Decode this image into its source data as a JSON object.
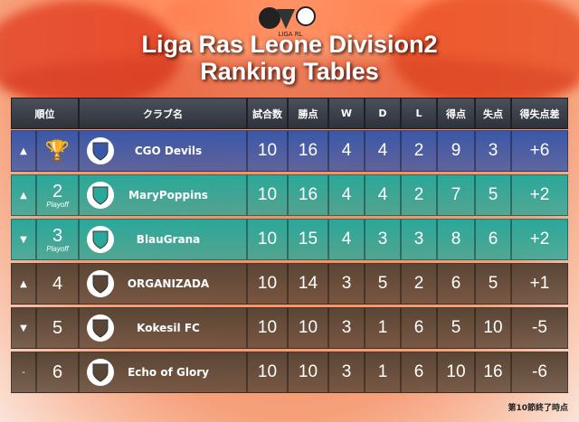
{
  "title_line1": "Liga Ras Leone Division2",
  "title_line2": "Ranking Tables",
  "logo_text": "LIGA RL",
  "headers": {
    "rank": "順位",
    "club": "クラブ名",
    "played": "試合数",
    "points": "勝点",
    "w": "W",
    "d": "D",
    "l": "L",
    "gf": "得点",
    "ga": "失点",
    "gd": "得失点差"
  },
  "rows": [
    {
      "trend": "up",
      "trend_icon": "▲",
      "rank": "",
      "playoff": "",
      "club": "CGO Devils",
      "played": "10",
      "points": "16",
      "w": "4",
      "d": "4",
      "l": "2",
      "gf": "9",
      "ga": "3",
      "gd": "+6",
      "color": "#3a58a8"
    },
    {
      "trend": "up",
      "trend_icon": "▲",
      "rank": "2",
      "playoff": "Playoff",
      "club": "MaryPoppins",
      "played": "10",
      "points": "16",
      "w": "4",
      "d": "4",
      "l": "2",
      "gf": "7",
      "ga": "5",
      "gd": "+2",
      "color": "#2aa89a"
    },
    {
      "trend": "down",
      "trend_icon": "▼",
      "rank": "3",
      "playoff": "Playoff",
      "club": "BlauGrana",
      "played": "10",
      "points": "15",
      "w": "4",
      "d": "3",
      "l": "3",
      "gf": "8",
      "ga": "6",
      "gd": "+2",
      "color": "#2aa89a"
    },
    {
      "trend": "up",
      "trend_icon": "▲",
      "rank": "4",
      "playoff": "",
      "club": "ORGANIZADA",
      "played": "10",
      "points": "14",
      "w": "3",
      "d": "5",
      "l": "2",
      "gf": "6",
      "ga": "5",
      "gd": "+1",
      "color": "#5a4636"
    },
    {
      "trend": "down",
      "trend_icon": "▼",
      "rank": "5",
      "playoff": "",
      "club": "Kokesil FC",
      "played": "10",
      "points": "10",
      "w": "3",
      "d": "1",
      "l": "6",
      "gf": "5",
      "ga": "10",
      "gd": "-5",
      "color": "#5a4636"
    },
    {
      "trend": "same",
      "trend_icon": "-",
      "rank": "6",
      "playoff": "",
      "club": "Echo of Glory",
      "played": "10",
      "points": "10",
      "w": "3",
      "d": "1",
      "l": "6",
      "gf": "10",
      "ga": "16",
      "gd": "-6",
      "color": "#5a4636"
    }
  ],
  "footer": "第10節終了時点"
}
